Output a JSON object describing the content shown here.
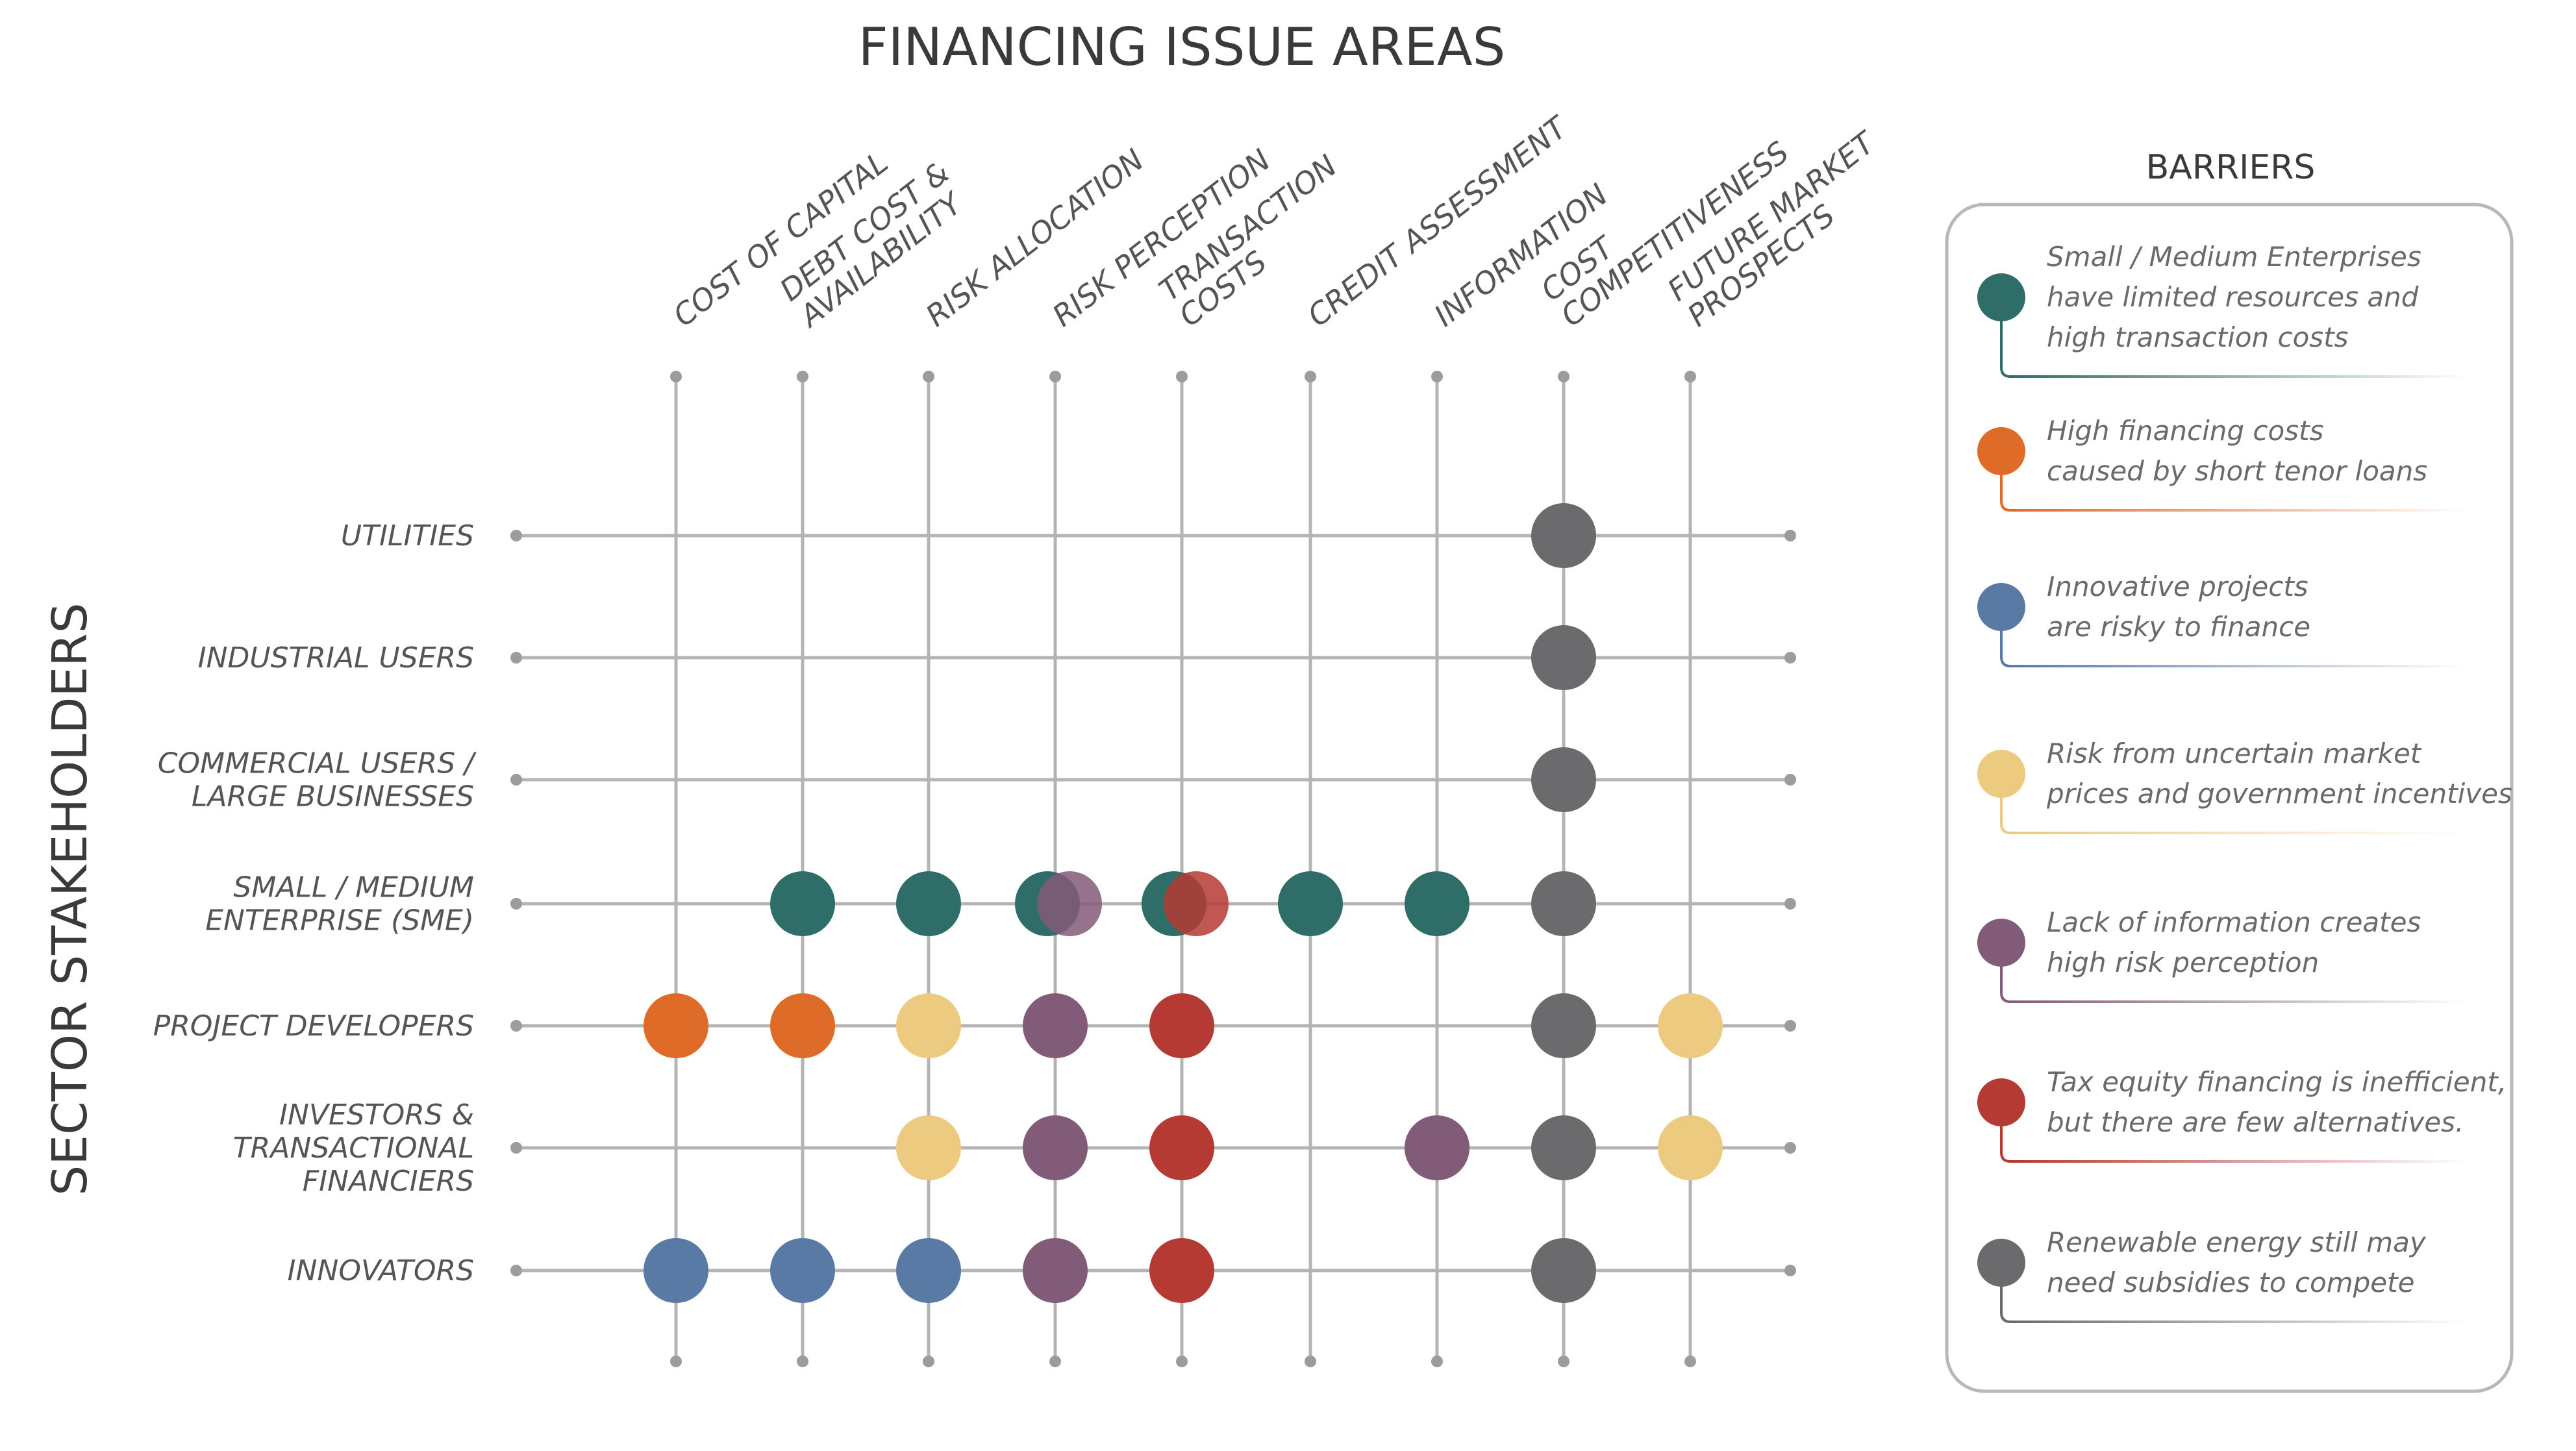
{
  "title": "FINANCING ISSUE AREAS",
  "side_title": "SECTOR STAKEHOLDERS",
  "legend_title": "BARRIERS",
  "columns": [
    {
      "id": "cost",
      "lines": [
        "COST OF CAPITAL"
      ]
    },
    {
      "id": "debt",
      "lines": [
        "DEBT COST &",
        "AVAILABILITY"
      ]
    },
    {
      "id": "risk_alloc",
      "lines": [
        "RISK ALLOCATION"
      ]
    },
    {
      "id": "risk_perc",
      "lines": [
        "RISK PERCEPTION"
      ]
    },
    {
      "id": "trans",
      "lines": [
        "TRANSACTION",
        "COSTS"
      ]
    },
    {
      "id": "credit",
      "lines": [
        "CREDIT ASSESSMENT"
      ]
    },
    {
      "id": "info",
      "lines": [
        "INFORMATION"
      ]
    },
    {
      "id": "costcomp",
      "lines": [
        "COST",
        "COMPETITIVENESS"
      ]
    },
    {
      "id": "future",
      "lines": [
        "FUTURE MARKET",
        "PROSPECTS"
      ]
    }
  ],
  "rows": [
    {
      "id": "utilities",
      "lines": [
        "UTILITIES"
      ]
    },
    {
      "id": "industrial",
      "lines": [
        "INDUSTRIAL USERS"
      ]
    },
    {
      "id": "commercial",
      "lines": [
        "COMMERCIAL USERS /",
        "LARGE BUSINESSES"
      ]
    },
    {
      "id": "sme",
      "lines": [
        "SMALL / MEDIUM",
        "ENTERPRISE (SME)"
      ]
    },
    {
      "id": "developers",
      "lines": [
        "PROJECT DEVELOPERS"
      ]
    },
    {
      "id": "investors",
      "lines": [
        "INVESTORS &",
        "TRANSACTIONAL",
        "FINANCIERS"
      ]
    },
    {
      "id": "innovators",
      "lines": [
        "INNOVATORS"
      ]
    }
  ],
  "barriers": [
    {
      "id": "sme_limited",
      "color": "#2f6e68",
      "lines": [
        "Small / Medium Enterprises",
        "have limited resources and",
        "high transaction costs"
      ]
    },
    {
      "id": "high_cost",
      "color": "#de6b27",
      "lines": [
        "High financing costs",
        "caused by short tenor loans"
      ]
    },
    {
      "id": "innovative",
      "color": "#5a7aa6",
      "lines": [
        "Innovative projects",
        "are risky to finance"
      ]
    },
    {
      "id": "uncertain",
      "color": "#ecca7f",
      "lines": [
        "Risk from uncertain market",
        "prices and government incentives"
      ]
    },
    {
      "id": "info_lack",
      "color": "#825b78",
      "lines": [
        "Lack of information creates",
        "high risk perception"
      ]
    },
    {
      "id": "tax_equity",
      "color": "#b53a34",
      "lines": [
        "Tax equity financing is inefficient,",
        "but there are few alternatives."
      ]
    },
    {
      "id": "subsidies",
      "color": "#6b6b6d",
      "lines": [
        "Renewable energy still may",
        "need subsidies to compete"
      ]
    }
  ],
  "cells": [
    {
      "row": "utilities",
      "col": "costcomp",
      "barriers": [
        "subsidies"
      ]
    },
    {
      "row": "industrial",
      "col": "costcomp",
      "barriers": [
        "subsidies"
      ]
    },
    {
      "row": "commercial",
      "col": "costcomp",
      "barriers": [
        "subsidies"
      ]
    },
    {
      "row": "sme",
      "col": "debt",
      "barriers": [
        "sme_limited"
      ]
    },
    {
      "row": "sme",
      "col": "risk_alloc",
      "barriers": [
        "sme_limited"
      ]
    },
    {
      "row": "sme",
      "col": "risk_perc",
      "barriers": [
        "sme_limited",
        "info_lack"
      ]
    },
    {
      "row": "sme",
      "col": "trans",
      "barriers": [
        "sme_limited",
        "tax_equity"
      ]
    },
    {
      "row": "sme",
      "col": "credit",
      "barriers": [
        "sme_limited"
      ]
    },
    {
      "row": "sme",
      "col": "info",
      "barriers": [
        "sme_limited"
      ]
    },
    {
      "row": "sme",
      "col": "costcomp",
      "barriers": [
        "subsidies"
      ]
    },
    {
      "row": "developers",
      "col": "cost",
      "barriers": [
        "high_cost"
      ]
    },
    {
      "row": "developers",
      "col": "debt",
      "barriers": [
        "high_cost"
      ]
    },
    {
      "row": "developers",
      "col": "risk_alloc",
      "barriers": [
        "uncertain"
      ]
    },
    {
      "row": "developers",
      "col": "risk_perc",
      "barriers": [
        "info_lack"
      ]
    },
    {
      "row": "developers",
      "col": "trans",
      "barriers": [
        "tax_equity"
      ]
    },
    {
      "row": "developers",
      "col": "costcomp",
      "barriers": [
        "subsidies"
      ]
    },
    {
      "row": "developers",
      "col": "future",
      "barriers": [
        "uncertain"
      ]
    },
    {
      "row": "investors",
      "col": "risk_alloc",
      "barriers": [
        "uncertain"
      ]
    },
    {
      "row": "investors",
      "col": "risk_perc",
      "barriers": [
        "info_lack"
      ]
    },
    {
      "row": "investors",
      "col": "trans",
      "barriers": [
        "tax_equity"
      ]
    },
    {
      "row": "investors",
      "col": "info",
      "barriers": [
        "info_lack"
      ]
    },
    {
      "row": "investors",
      "col": "costcomp",
      "barriers": [
        "subsidies"
      ]
    },
    {
      "row": "investors",
      "col": "future",
      "barriers": [
        "uncertain"
      ]
    },
    {
      "row": "innovators",
      "col": "cost",
      "barriers": [
        "innovative"
      ]
    },
    {
      "row": "innovators",
      "col": "debt",
      "barriers": [
        "innovative"
      ]
    },
    {
      "row": "innovators",
      "col": "risk_alloc",
      "barriers": [
        "innovative"
      ]
    },
    {
      "row": "innovators",
      "col": "risk_perc",
      "barriers": [
        "info_lack"
      ]
    },
    {
      "row": "innovators",
      "col": "trans",
      "barriers": [
        "tax_equity"
      ]
    },
    {
      "row": "innovators",
      "col": "costcomp",
      "barriers": [
        "subsidies"
      ]
    }
  ],
  "colors": {
    "grid": "#b4b4b4",
    "dot": "#9c9c9c",
    "text": "#555555",
    "title": "#3a3a3a",
    "legend_border": "#b8b8b8"
  }
}
